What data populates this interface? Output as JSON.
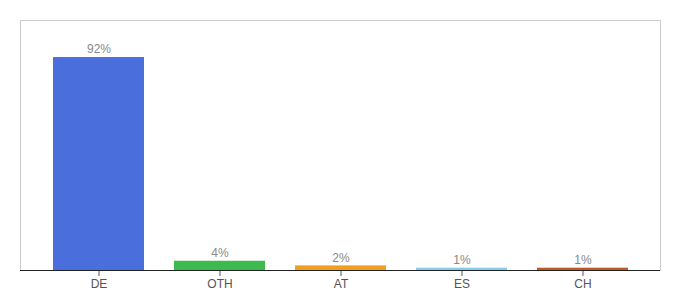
{
  "chart_data": {
    "type": "bar",
    "categories": [
      "DE",
      "OTH",
      "AT",
      "ES",
      "CH"
    ],
    "values": [
      92,
      4,
      2,
      1,
      1
    ],
    "value_labels": [
      "92%",
      "4%",
      "2%",
      "1%",
      "1%"
    ],
    "colors": [
      "#4a6fdc",
      "#3dba4e",
      "#f0a020",
      "#85cce8",
      "#c05828"
    ],
    "ylim": [
      0,
      108
    ],
    "yticks": [],
    "grid": false,
    "data_labels": true,
    "tick_labels": "x"
  }
}
